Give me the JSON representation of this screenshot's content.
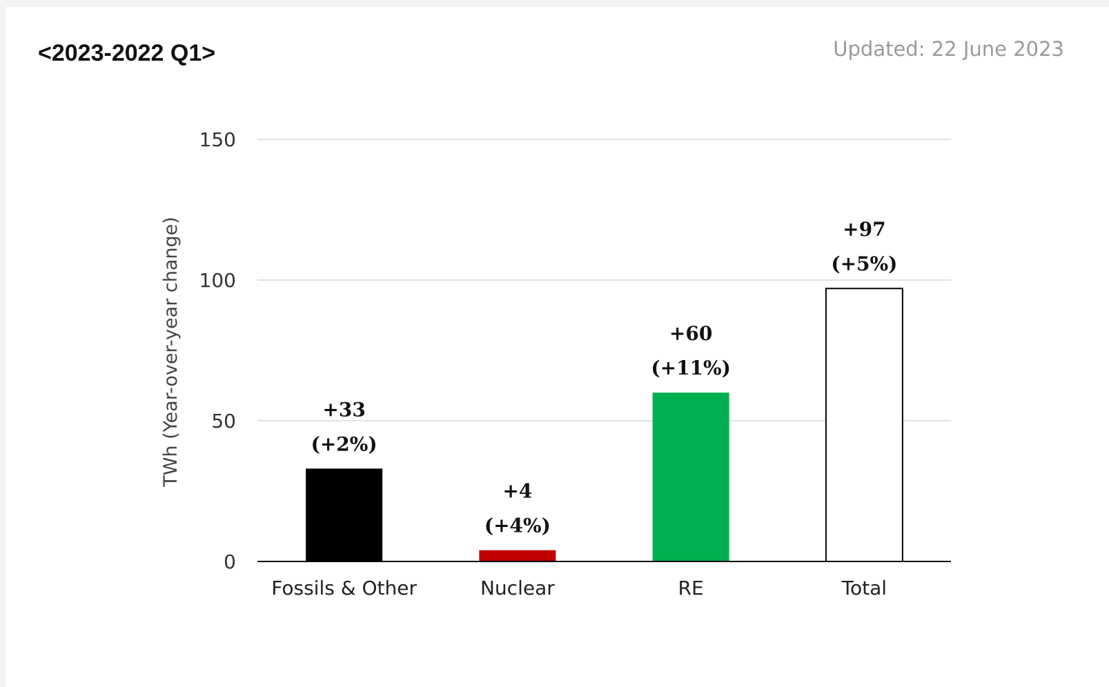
{
  "header": {
    "title": "<2023-2022 Q1>",
    "updated": "Updated: 22 June 2023"
  },
  "colors": {
    "fossils": "#000000",
    "nuclear": "#c00000",
    "re": "#00b050",
    "total": "#ffffff",
    "grid": "#d9d9d9",
    "axis": "#000000"
  },
  "chart_data": {
    "type": "bar",
    "title": "<2023-2022 Q1>",
    "xlabel": "",
    "ylabel": "TWh (Year-over-year change)",
    "ylim": [
      0,
      150
    ],
    "yticks": [
      0,
      50,
      100,
      150
    ],
    "grid": true,
    "categories": [
      "Fossils & Other",
      "Nuclear",
      "RE",
      "Total"
    ],
    "values": [
      33,
      4,
      60,
      97
    ],
    "value_labels": [
      "+33",
      "+4",
      "+60",
      "+97"
    ],
    "percent_labels": [
      "(+2%)",
      "(+4%)",
      "(+11%)",
      "(+5%)"
    ]
  }
}
